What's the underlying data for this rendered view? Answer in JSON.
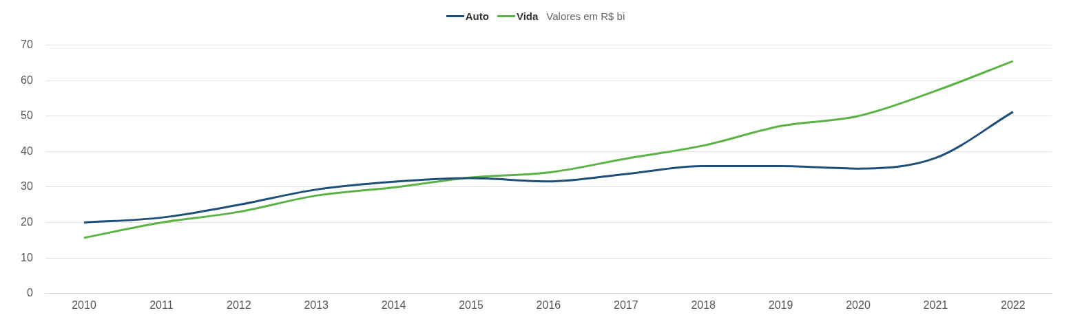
{
  "chart_data": {
    "type": "line",
    "subtitle": "Valores em R$ bi",
    "categories": [
      "2010",
      "2011",
      "2012",
      "2013",
      "2014",
      "2015",
      "2016",
      "2017",
      "2018",
      "2019",
      "2020",
      "2021",
      "2022"
    ],
    "series": [
      {
        "name": "Auto",
        "color": "#1f4e79",
        "values": [
          20,
          21.4,
          25,
          29.3,
          31.5,
          32.5,
          31.6,
          33.7,
          35.9,
          35.9,
          35.2,
          38.2,
          51.2
        ]
      },
      {
        "name": "Vida",
        "color": "#5cb246",
        "values": [
          15.7,
          20,
          23,
          27.6,
          29.9,
          32.7,
          34.1,
          38,
          41.7,
          47.2,
          50,
          57.1,
          65.5
        ]
      }
    ],
    "ylim": [
      0,
      70
    ],
    "yticks": [
      0,
      10,
      20,
      30,
      40,
      50,
      60,
      70
    ],
    "grid": "y",
    "legend": "top",
    "marker": "none",
    "line_style": "solid"
  }
}
